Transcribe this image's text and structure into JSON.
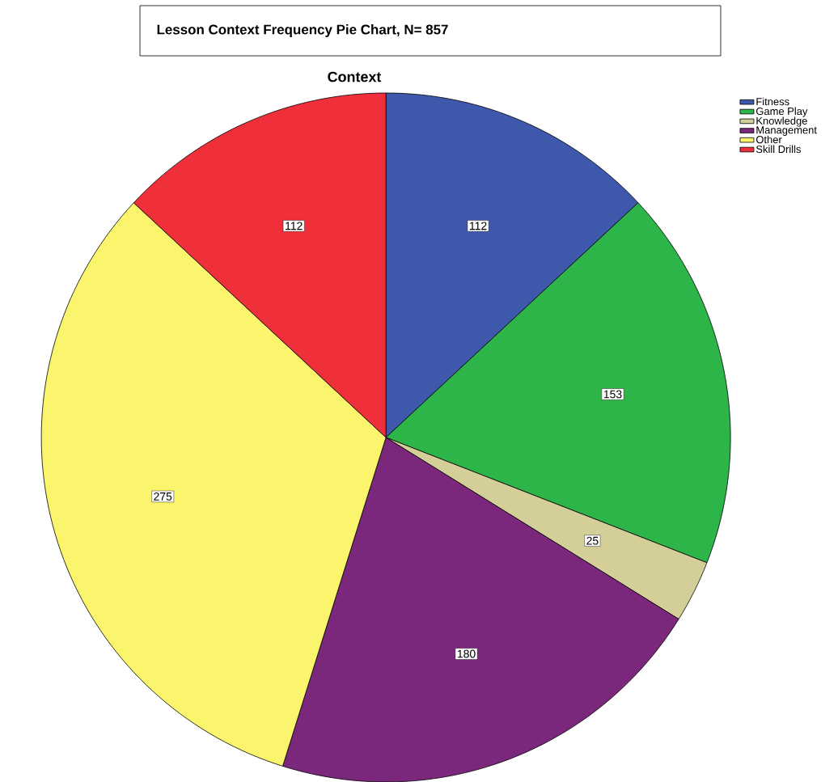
{
  "chart_data": {
    "type": "pie",
    "title": "Lesson Context Frequency Pie Chart, N= 857",
    "subtitle": "Context",
    "categories": [
      "Fitness",
      "Game Play",
      "Knowledge",
      "Management",
      "Other",
      "Skill Drills"
    ],
    "values": [
      112,
      153,
      25,
      180,
      275,
      112
    ],
    "colors": [
      "#3e58ac",
      "#2db54a",
      "#d4cf98",
      "#7b287c",
      "#fbf56e",
      "#ef2f3a"
    ],
    "data_labels": true,
    "legend": "top right"
  }
}
